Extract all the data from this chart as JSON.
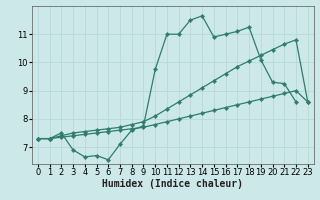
{
  "xlabel": "Humidex (Indice chaleur)",
  "bg_color": "#cce8e8",
  "grid_color": "#b8d8d8",
  "line_color": "#2e7d6e",
  "xlim": [
    -0.5,
    23.5
  ],
  "ylim": [
    6.4,
    12.0
  ],
  "yticks": [
    7,
    8,
    9,
    10,
    11
  ],
  "xticks": [
    0,
    1,
    2,
    3,
    4,
    5,
    6,
    7,
    8,
    9,
    10,
    11,
    12,
    13,
    14,
    15,
    16,
    17,
    18,
    19,
    20,
    21,
    22,
    23
  ],
  "line1_y": [
    7.3,
    7.3,
    7.5,
    6.9,
    6.65,
    6.7,
    6.55,
    7.1,
    7.6,
    7.75,
    9.75,
    11.0,
    11.0,
    11.5,
    11.65,
    10.9,
    11.0,
    11.1,
    11.25,
    10.1,
    9.3,
    9.25,
    8.6,
    null
  ],
  "line2_y": [
    7.3,
    7.3,
    7.35,
    7.4,
    7.45,
    7.5,
    7.55,
    7.6,
    7.65,
    7.7,
    7.8,
    7.9,
    8.0,
    8.1,
    8.2,
    8.3,
    8.4,
    8.5,
    8.6,
    8.7,
    8.8,
    8.9,
    9.0,
    8.6
  ],
  "line3_y": [
    7.3,
    7.3,
    7.4,
    7.5,
    7.55,
    7.6,
    7.65,
    7.7,
    7.8,
    7.9,
    8.1,
    8.35,
    8.6,
    8.85,
    9.1,
    9.35,
    9.6,
    9.85,
    10.05,
    10.25,
    10.45,
    10.65,
    10.8,
    8.6
  ],
  "markersize": 2.2,
  "linewidth": 0.9,
  "xlabel_fontsize": 7,
  "tick_fontsize": 6
}
